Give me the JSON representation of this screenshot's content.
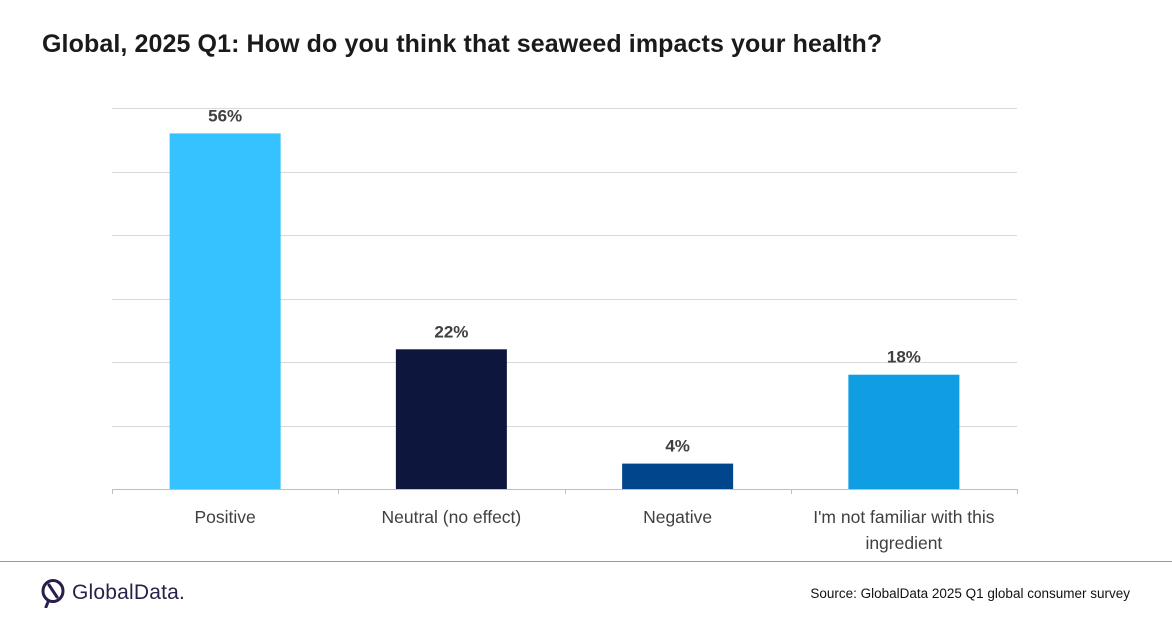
{
  "title": "Global, 2025 Q1: How do you think that seaweed impacts your health?",
  "footer": {
    "logo_text": "GlobalData.",
    "source": "Source: GlobalData 2025 Q1 global consumer survey"
  },
  "chart_data": {
    "type": "bar",
    "categories": [
      "Positive",
      "Neutral (no effect)",
      "Negative",
      "I'm not familiar with this ingredient"
    ],
    "values": [
      56,
      22,
      4,
      18
    ],
    "value_labels": [
      "56%",
      "22%",
      "4%",
      "18%"
    ],
    "colors": [
      "#36c1ff",
      "#0d173d",
      "#00468c",
      "#0f9ee1"
    ],
    "ylim": [
      0,
      60
    ],
    "grid": true,
    "gridline_color": "#d9d9d9",
    "axis_color": "#bfbfbf",
    "tick_label_color": "#404040",
    "data_label_color": "#404040"
  }
}
